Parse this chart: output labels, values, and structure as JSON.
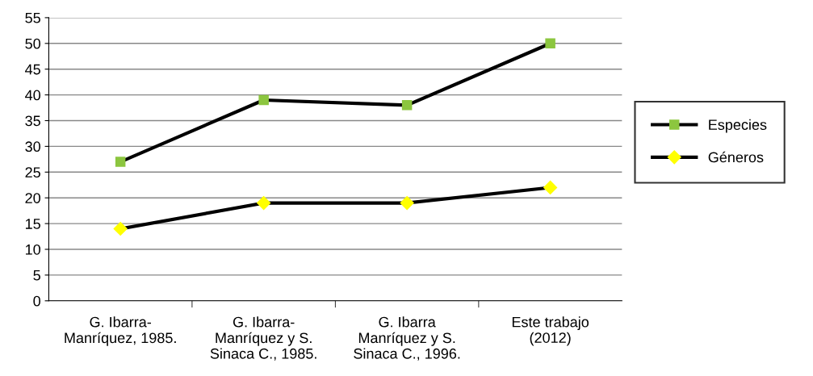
{
  "chart_data": {
    "type": "line",
    "categories": [
      "G. Ibarra-\nManríquez, 1985.",
      "G. Ibarra-\nManríquez y S.\nSinaca C., 1985.",
      "G. Ibarra\nManríquez y S.\nSinaca C., 1996.",
      "Este trabajo\n(2012)"
    ],
    "series": [
      {
        "name": "Especies",
        "color": "#8cc63f",
        "marker": "square",
        "values": [
          27,
          39,
          38,
          50
        ]
      },
      {
        "name": "Géneros",
        "color": "#ffff00",
        "marker": "diamond",
        "values": [
          14,
          19,
          19,
          22
        ]
      }
    ],
    "ylim": [
      0,
      55
    ],
    "yticks": [
      0,
      5,
      10,
      15,
      20,
      25,
      30,
      35,
      40,
      45,
      50,
      55
    ],
    "grid": "y",
    "legend": "right",
    "line_style": "solid"
  }
}
